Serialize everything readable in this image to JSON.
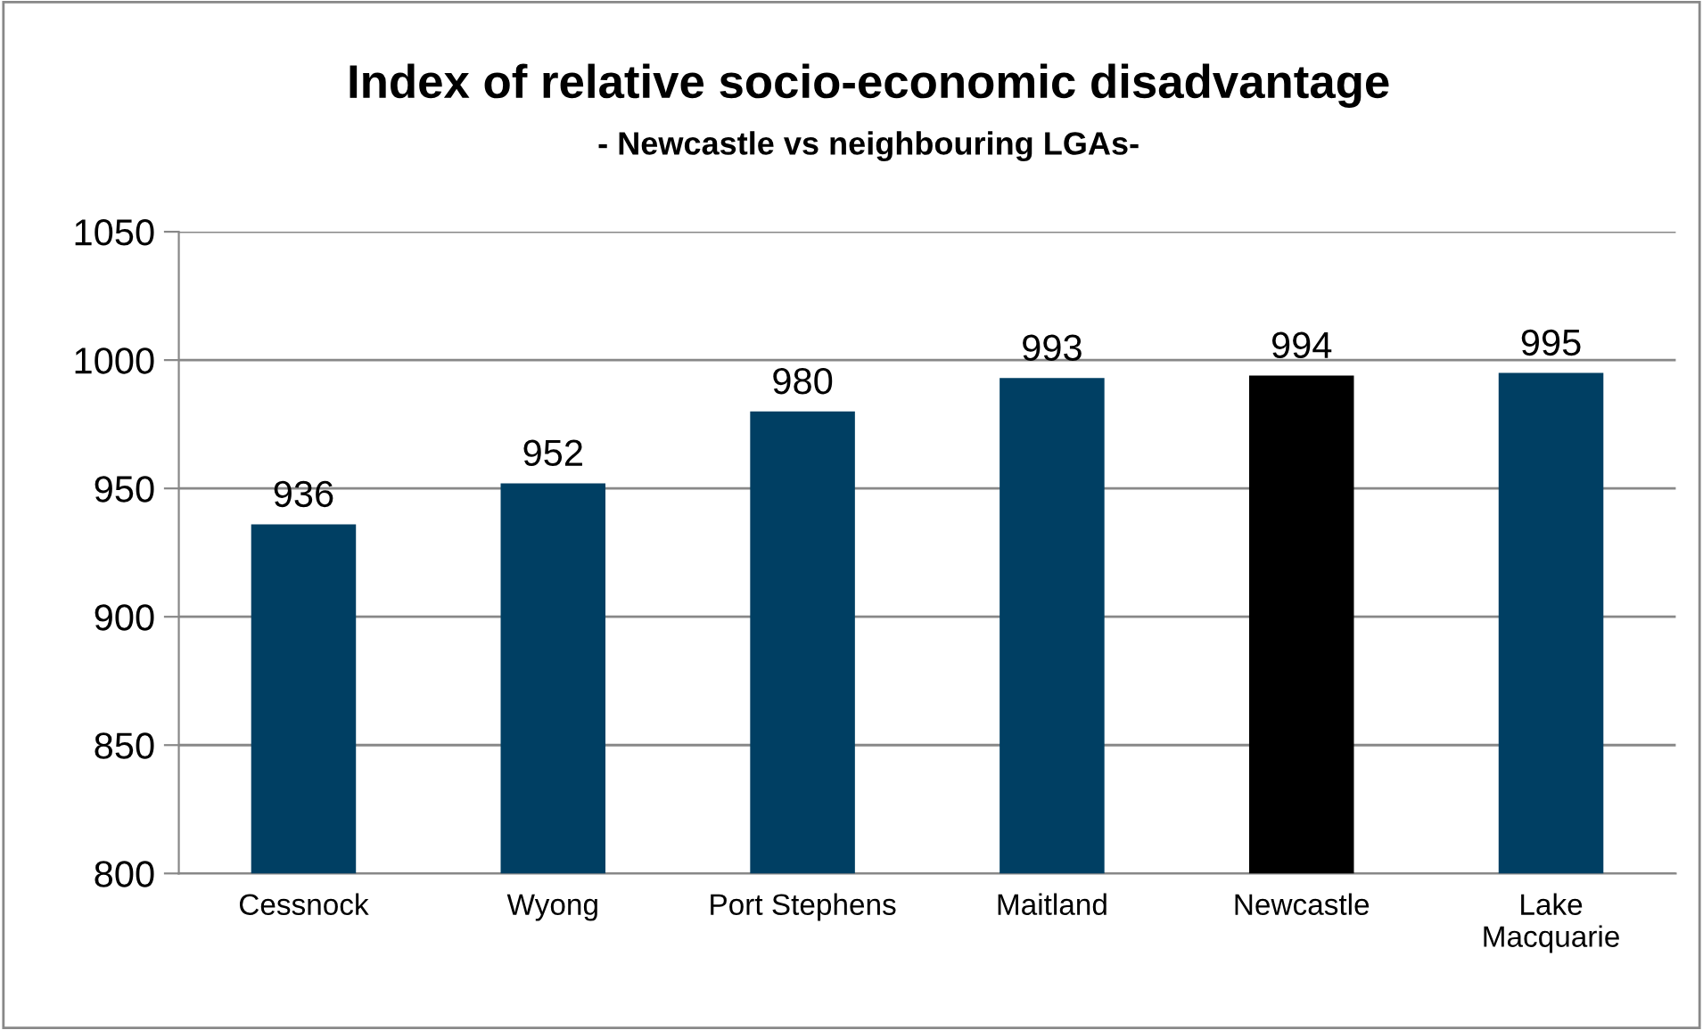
{
  "chart_data": {
    "type": "bar",
    "title": "Index of relative socio-economic disadvantage",
    "subtitle": "- Newcastle vs neighbouring LGAs-",
    "categories": [
      "Cessnock",
      "Wyong",
      "Port Stephens",
      "Maitland",
      "Newcastle",
      "Lake\nMacquarie"
    ],
    "values": [
      936,
      952,
      980,
      993,
      994,
      995
    ],
    "colors": [
      "#003f63",
      "#003f63",
      "#003f63",
      "#003f63",
      "#000000",
      "#003f63"
    ],
    "ylim": [
      800,
      1050
    ],
    "yticks": [
      800,
      850,
      900,
      950,
      1000,
      1050
    ],
    "grid": "y",
    "data_labels": true
  }
}
